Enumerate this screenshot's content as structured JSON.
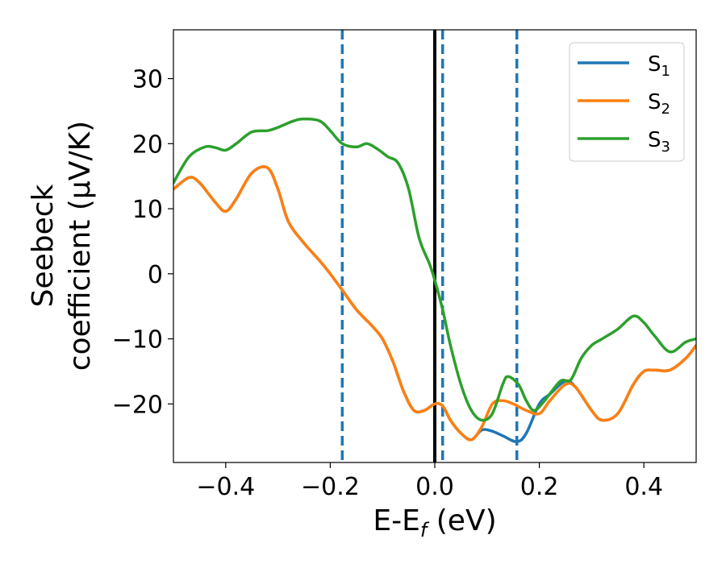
{
  "chart_data": {
    "type": "line",
    "xlabel": {
      "main": "E-E",
      "sub": "f",
      "tail": " (eV)"
    },
    "ylabel": {
      "line1": "Seebeck",
      "line2": "coefficient  (μV/K)"
    },
    "xlim": [
      -0.5,
      0.5
    ],
    "ylim": [
      -29,
      37.5
    ],
    "xticks": [
      {
        "value": -0.4,
        "label": "−0.4"
      },
      {
        "value": -0.2,
        "label": "−0.2"
      },
      {
        "value": 0.0,
        "label": "0.0"
      },
      {
        "value": 0.2,
        "label": "0.2"
      },
      {
        "value": 0.4,
        "label": "0.4"
      }
    ],
    "yticks": [
      {
        "value": -20,
        "label": "−20"
      },
      {
        "value": -10,
        "label": "−10"
      },
      {
        "value": 0,
        "label": "0"
      },
      {
        "value": 10,
        "label": "10"
      },
      {
        "value": 20,
        "label": "20"
      },
      {
        "value": 30,
        "label": "30"
      }
    ],
    "grid": false,
    "legend_position": "top-right",
    "vlines": [
      {
        "x": -0.177,
        "style": "dashed",
        "color": "#1f77b4"
      },
      {
        "x": 0.0,
        "style": "solid",
        "color": "#000000"
      },
      {
        "x": 0.015,
        "style": "dashed",
        "color": "#1f77b4"
      },
      {
        "x": 0.157,
        "style": "dashed",
        "color": "#1f77b4"
      }
    ],
    "series": [
      {
        "name": "S",
        "sub": "1",
        "color": "#1f77b4",
        "x": [
          -0.5,
          -0.47,
          -0.45,
          -0.42,
          -0.4,
          -0.38,
          -0.35,
          -0.32,
          -0.3,
          -0.28,
          -0.25,
          -0.22,
          -0.2,
          -0.177,
          -0.15,
          -0.12,
          -0.1,
          -0.08,
          -0.06,
          -0.04,
          -0.02,
          0.0,
          0.015,
          0.03,
          0.05,
          0.07,
          0.09,
          0.11,
          0.13,
          0.157,
          0.175,
          0.2,
          0.22,
          0.25,
          0.27,
          0.3,
          0.32,
          0.35,
          0.38,
          0.4,
          0.42,
          0.45,
          0.48,
          0.5
        ],
        "y": [
          13,
          14.8,
          14,
          11,
          9.6,
          11.5,
          15.5,
          16.3,
          13,
          8,
          4.7,
          2,
          0,
          -2.5,
          -5.5,
          -8,
          -10,
          -13.5,
          -18,
          -21,
          -21,
          -20,
          -20.3,
          -22.5,
          -24.5,
          -25.5,
          -24,
          -24.2,
          -24.9,
          -25.8,
          -24.5,
          -20,
          -18.5,
          -16.5,
          -17.5,
          -21,
          -22.5,
          -21.5,
          -17,
          -15,
          -14.8,
          -14.8,
          -13,
          -11
        ]
      },
      {
        "name": "S",
        "sub": "2",
        "color": "#ff7f0e",
        "x": [
          -0.5,
          -0.47,
          -0.45,
          -0.42,
          -0.4,
          -0.38,
          -0.35,
          -0.32,
          -0.3,
          -0.28,
          -0.25,
          -0.22,
          -0.2,
          -0.177,
          -0.15,
          -0.12,
          -0.1,
          -0.08,
          -0.06,
          -0.04,
          -0.02,
          0.0,
          0.015,
          0.03,
          0.05,
          0.07,
          0.09,
          0.11,
          0.13,
          0.15,
          0.175,
          0.2,
          0.22,
          0.25,
          0.27,
          0.3,
          0.32,
          0.35,
          0.38,
          0.4,
          0.42,
          0.45,
          0.48,
          0.5
        ],
        "y": [
          13,
          14.8,
          14,
          11,
          9.6,
          11.5,
          15.5,
          16.3,
          13,
          8,
          4.7,
          2,
          0,
          -2.5,
          -5.5,
          -8,
          -10,
          -13.5,
          -18,
          -21,
          -21,
          -20,
          -20.3,
          -22.5,
          -24.5,
          -25.5,
          -23.5,
          -20,
          -19.5,
          -20,
          -21,
          -21.5,
          -19.5,
          -17,
          -17.5,
          -21,
          -22.5,
          -21.5,
          -17,
          -15,
          -14.8,
          -14.8,
          -13,
          -11
        ]
      },
      {
        "name": "S",
        "sub": "3",
        "color": "#2ca02c",
        "x": [
          -0.5,
          -0.47,
          -0.44,
          -0.42,
          -0.4,
          -0.38,
          -0.35,
          -0.32,
          -0.3,
          -0.27,
          -0.25,
          -0.22,
          -0.2,
          -0.177,
          -0.15,
          -0.13,
          -0.11,
          -0.09,
          -0.07,
          -0.05,
          -0.03,
          -0.01,
          0.0,
          0.015,
          0.03,
          0.05,
          0.07,
          0.09,
          0.11,
          0.13,
          0.14,
          0.16,
          0.175,
          0.19,
          0.21,
          0.24,
          0.26,
          0.28,
          0.3,
          0.32,
          0.35,
          0.38,
          0.4,
          0.42,
          0.45,
          0.48,
          0.5
        ],
        "y": [
          14,
          18,
          19.5,
          19.4,
          19,
          20,
          21.8,
          22,
          22.5,
          23.5,
          23.8,
          23.5,
          22,
          20,
          19.5,
          20,
          19.2,
          18,
          17,
          13,
          5.5,
          1.5,
          -1,
          -5.5,
          -11,
          -17,
          -21,
          -22.5,
          -21.5,
          -17,
          -15.8,
          -17,
          -19.5,
          -21,
          -19.5,
          -16.5,
          -16.3,
          -13,
          -11,
          -10,
          -8.5,
          -6.5,
          -7.5,
          -9.5,
          -12,
          -10.5,
          -10
        ]
      }
    ]
  }
}
